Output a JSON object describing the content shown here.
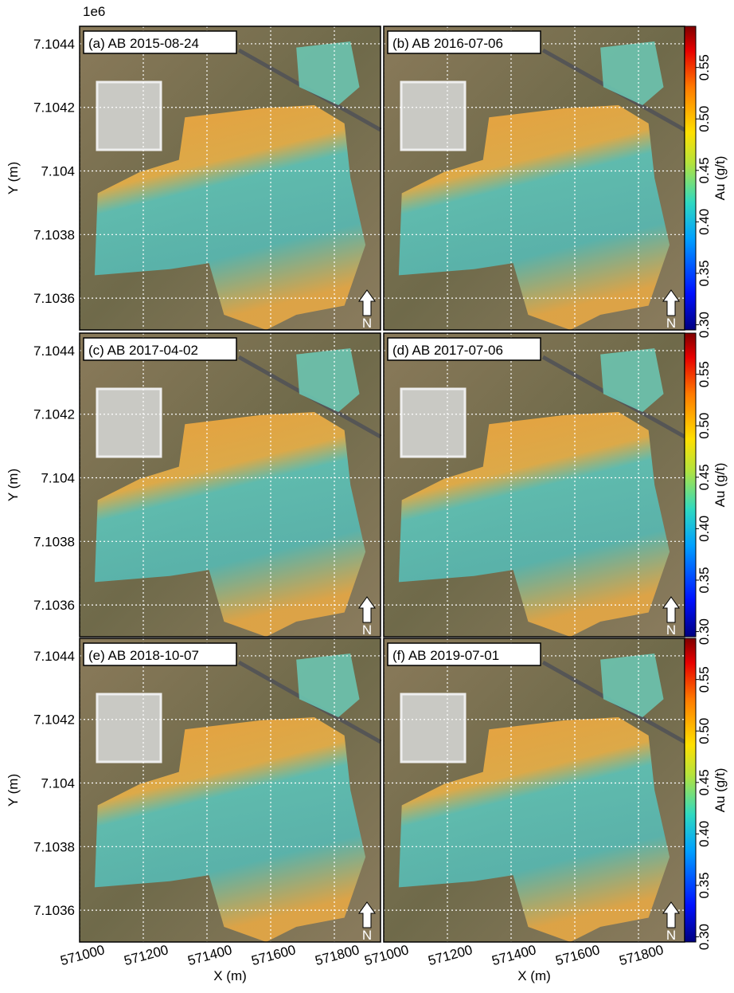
{
  "figure": {
    "offset_label": "1e6",
    "x_label": "X (m)",
    "y_label": "Y (m)",
    "colorbar_label": "Au (g/t)",
    "north_label": "N",
    "xlim": [
      571000,
      571945
    ],
    "ylim": [
      7.1035,
      7.104455
    ],
    "xticks": [
      571000,
      571200,
      571400,
      571600,
      571800
    ],
    "yticks": [
      7.1036,
      7.1038,
      7.104,
      7.1042,
      7.1044
    ],
    "colorbar": {
      "lim": [
        0.295,
        0.59
      ],
      "ticks": [
        {
          "value": 0.3,
          "label": "0.30"
        },
        0.35,
        {
          "value": 0.4,
          "label": "0.40"
        },
        0.45,
        {
          "value": 0.5,
          "label": "0.50"
        },
        0.55
      ]
    },
    "panels": [
      {
        "label": "(a) AB 2015-08-24"
      },
      {
        "label": "(b) AB 2016-07-06"
      },
      {
        "label": "(c) AB 2017-04-02"
      },
      {
        "label": "(d) AB 2017-07-06"
      },
      {
        "label": "(e) AB 2018-10-07"
      },
      {
        "label": "(f) AB 2019-07-01"
      }
    ]
  }
}
